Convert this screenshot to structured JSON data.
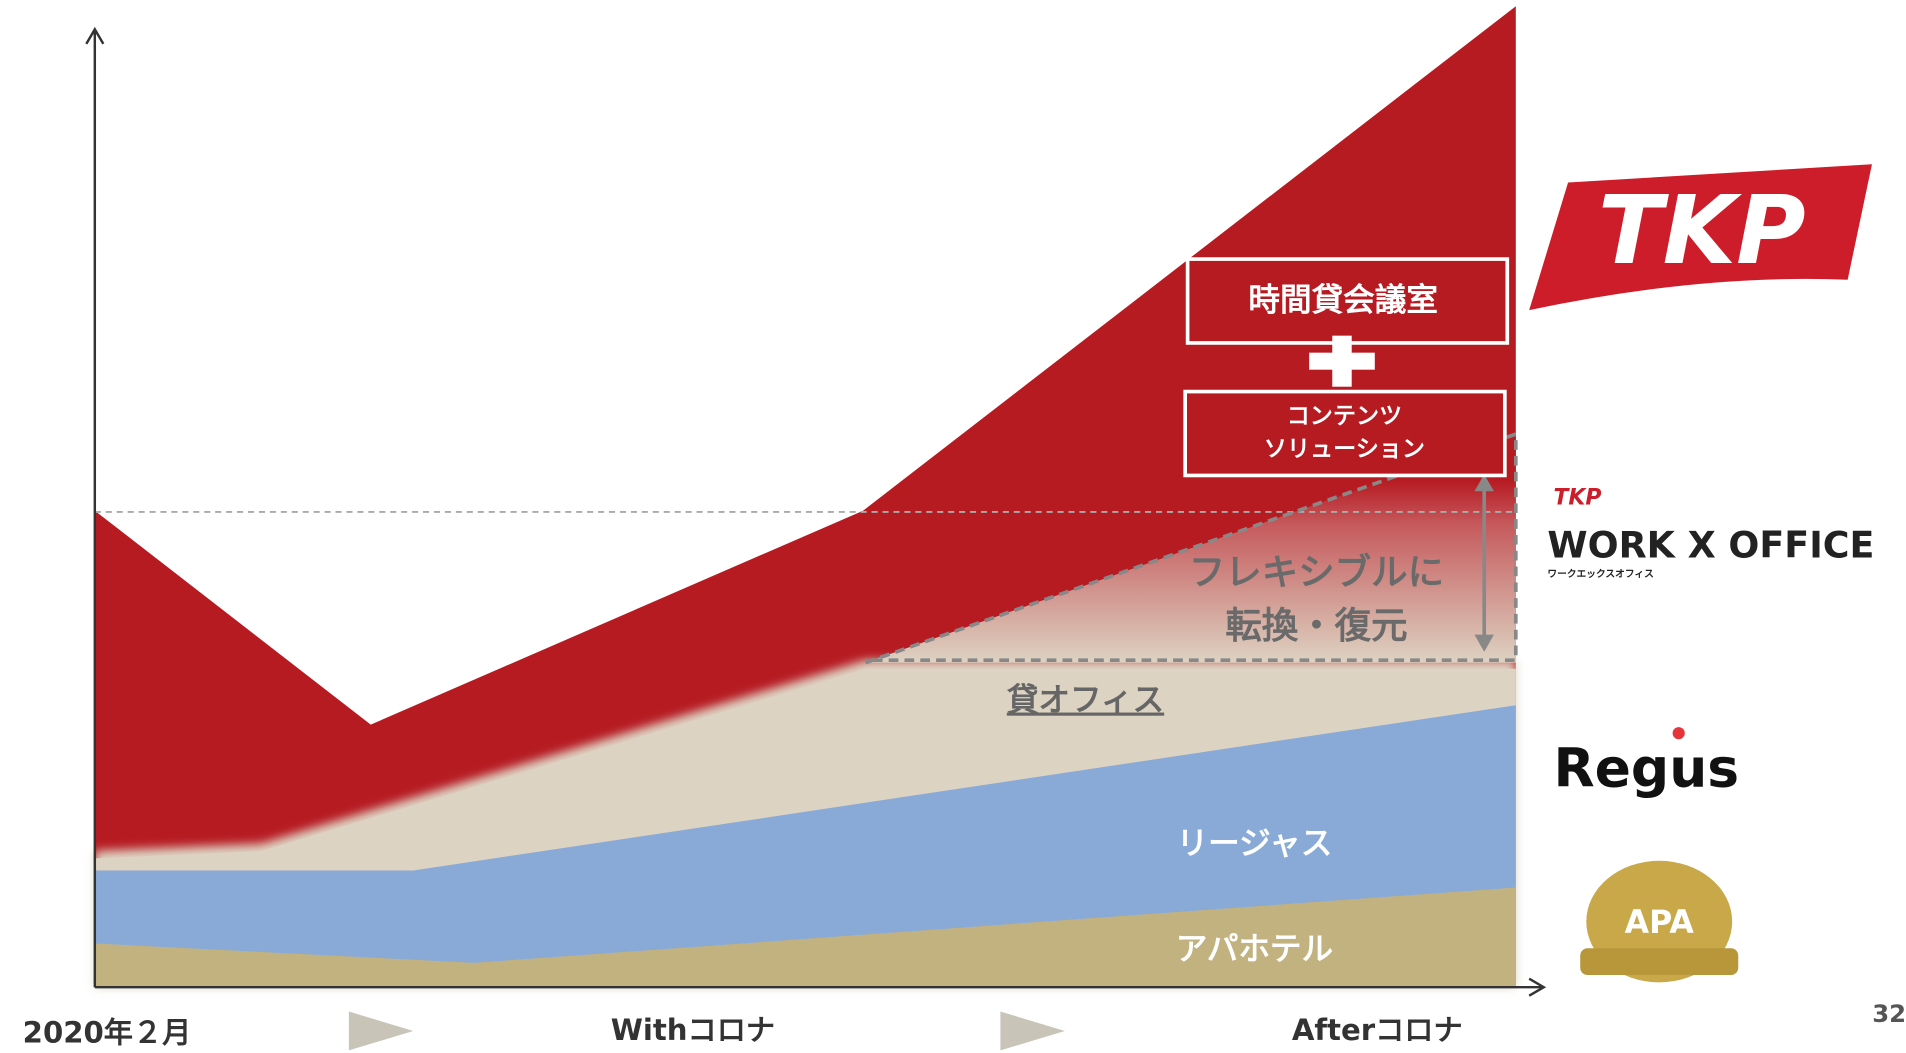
{
  "boxes": {
    "meeting_room": "時間貸会議室",
    "contents_line1": "コンテンツ",
    "contents_line2": "ソリューション"
  },
  "flex": {
    "line1": "フレキシブルに",
    "line2": "転換・復元"
  },
  "layers": {
    "rental_office": "貸オフィス",
    "regus": "リージャス",
    "apa_hotel": "アパホテル"
  },
  "timeline": {
    "start": "2020年２月",
    "middle": "Withコロナ",
    "end": "Afterコロナ"
  },
  "logos": {
    "tkp": "TKP",
    "tkp_small": "TKP",
    "work_office": "WORK X OFFICE",
    "work_office_kana": "ワークエックスオフィス",
    "regus": "Regus",
    "apa": "APA"
  },
  "page_number": "32"
}
